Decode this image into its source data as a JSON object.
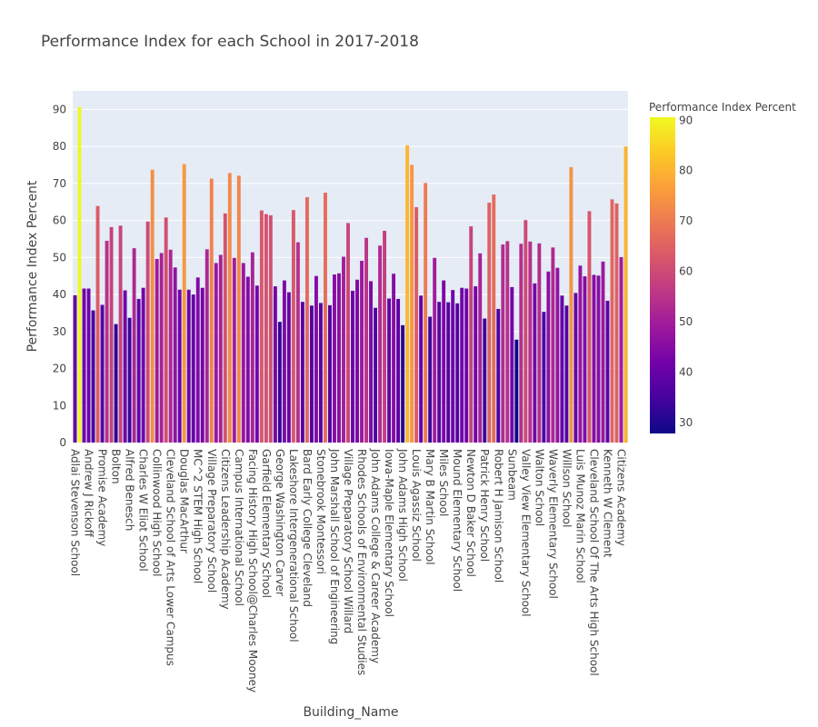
{
  "chart_data": {
    "type": "bar",
    "title": "Performance Index for each School in 2017-2018",
    "xlabel": "Building_Name",
    "ylabel": "Performance Index Percent",
    "ylim": [
      0,
      95
    ],
    "yticks": [
      0,
      10,
      20,
      30,
      40,
      50,
      60,
      70,
      80,
      90
    ],
    "grid": true,
    "colorbar": {
      "title": "Performance Index Percent",
      "range": [
        27.8,
        90.6
      ],
      "ticks": [
        30,
        40,
        50,
        60,
        70,
        80,
        90
      ],
      "colorscale": [
        "#0d0887",
        "#46039f",
        "#7201a8",
        "#9c179e",
        "#bd3786",
        "#d8576b",
        "#ed7953",
        "#fb9f3a",
        "#fdca26",
        "#f0f921"
      ]
    },
    "tick_labels": [
      "Adlai Stevenson School",
      "Andrew J Rickoff",
      "Promise Academy",
      "Bolton",
      "Alfred Benesch",
      "Charles W Eliot  School",
      "Collinwood High School",
      "Cleveland School of Arts Lower Campus",
      "Douglas MacArthur",
      "MC^2 STEM High School",
      "Village Preparatory School",
      "Citizens Leadership Academy",
      "Campus International School",
      "Facing History High School@Charles Mooney",
      "Garfield Elementary School",
      "George Washington Carver",
      "Lakeshore Intergenerational School",
      "Bard Early College Cleveland",
      "Stonebrook Montessori",
      "John Marshall School of Engineering",
      "Village Preparatory School Willard",
      "Rhodes Schools of Environmental Studies",
      "John Adams College & Career Academy",
      "Iowa-Maple Elementary School",
      "John Adams High School",
      "Louis Agassiz School",
      "Mary B Martin School",
      "Miles School",
      "Mound Elementary School",
      "Newton D Baker School",
      "Patrick Henry School",
      "Robert H Jamison School",
      "Sunbeam",
      "Valley View Elementary School",
      "Walton School",
      "Waverly Elementary School",
      "Willson School",
      "Luis Munoz Marin School",
      "Cleveland School Of The Arts High School",
      "Kenneth W Clement",
      "Citizens Academy"
    ],
    "values": [
      39.8,
      90.6,
      41.6,
      41.6,
      35.7,
      63.9,
      37.2,
      54.5,
      58.2,
      32.0,
      58.6,
      41.1,
      33.7,
      52.5,
      38.8,
      41.8,
      59.7,
      73.7,
      49.6,
      51.2,
      60.8,
      52.1,
      47.3,
      41.3,
      75.2,
      41.3,
      40.0,
      44.6,
      41.8,
      52.2,
      71.3,
      48.5,
      50.7,
      61.9,
      72.8,
      49.9,
      72.1,
      48.5,
      44.8,
      51.4,
      42.4,
      62.7,
      61.7,
      61.4,
      42.2,
      32.6,
      43.8,
      40.6,
      62.8,
      54.1,
      38.0,
      66.3,
      37.0,
      45.0,
      37.7,
      67.5,
      37.1,
      45.4,
      45.7,
      50.2,
      59.3,
      41.0,
      44.0,
      49.1,
      55.3,
      43.6,
      36.4,
      53.2,
      57.2,
      38.9,
      45.6,
      38.8,
      31.7,
      80.3,
      75.0,
      63.6,
      39.7,
      70.1,
      34.0,
      49.9,
      38.0,
      43.8,
      37.9,
      41.2,
      37.6,
      41.8,
      41.6,
      58.4,
      42.2,
      51.1,
      33.5,
      64.8,
      67.0,
      36.1,
      53.5,
      54.4,
      42.0,
      27.8,
      53.7,
      60.1,
      54.3,
      43.0,
      53.8,
      35.3,
      46.2,
      52.7,
      47.2,
      39.7,
      37.0,
      74.4,
      40.4,
      47.8,
      44.9,
      62.5,
      45.3,
      45.1,
      48.9,
      38.3,
      65.7,
      64.6,
      50.1,
      80.0
    ]
  }
}
